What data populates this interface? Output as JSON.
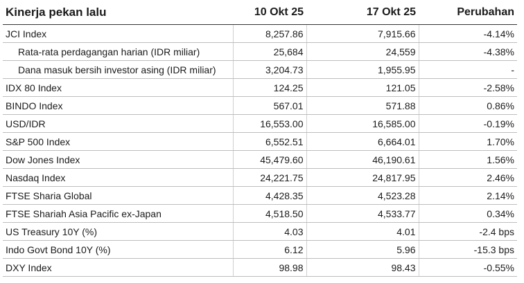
{
  "header": {
    "title": "Kinerja pekan lalu",
    "columns": [
      "10 Okt 25",
      "17 Okt 25",
      "Perubahan"
    ]
  },
  "table": {
    "rows": [
      {
        "cells": [
          "JCI Index",
          "8,257.86",
          "7,915.66",
          "-4.14%"
        ]
      },
      {
        "cells": [
          "Rata-rata perdagangan harian (IDR miliar)",
          "25,684",
          "24,559",
          "-4.38%"
        ],
        "indent": true
      },
      {
        "cells": [
          "Dana masuk bersih investor asing (IDR miliar)",
          "3,204.73",
          "1,955.95",
          "-"
        ],
        "indent": true
      },
      {
        "cells": [
          "IDX 80 Index",
          "124.25",
          "121.05",
          "-2.58%"
        ]
      },
      {
        "cells": [
          "BINDO Index",
          "567.01",
          "571.88",
          "0.86%"
        ]
      },
      {
        "cells": [
          "USD/IDR",
          "16,553.00",
          "16,585.00",
          "-0.19%"
        ]
      },
      {
        "cells": [
          "S&P 500 Index",
          "6,552.51",
          "6,664.01",
          "1.70%"
        ]
      },
      {
        "cells": [
          "Dow Jones Index",
          "45,479.60",
          "46,190.61",
          "1.56%"
        ]
      },
      {
        "cells": [
          "Nasdaq Index",
          "24,221.75",
          "24,817.95",
          "2.46%"
        ]
      },
      {
        "cells": [
          "FTSE Sharia Global",
          "4,428.35",
          "4,523.28",
          "2.14%"
        ]
      },
      {
        "cells": [
          "FTSE Shariah Asia Pacific ex-Japan",
          "4,518.50",
          "4,533.77",
          "0.34%"
        ]
      },
      {
        "cells": [
          "US Treasury 10Y (%)",
          "4.03",
          "4.01",
          "-2.4 bps"
        ]
      },
      {
        "cells": [
          "Indo Govt Bond 10Y (%)",
          "6.12",
          "5.96",
          "-15.3 bps"
        ]
      },
      {
        "cells": [
          "DXY Index",
          "98.98",
          "98.43",
          "-0.55%"
        ]
      }
    ]
  }
}
